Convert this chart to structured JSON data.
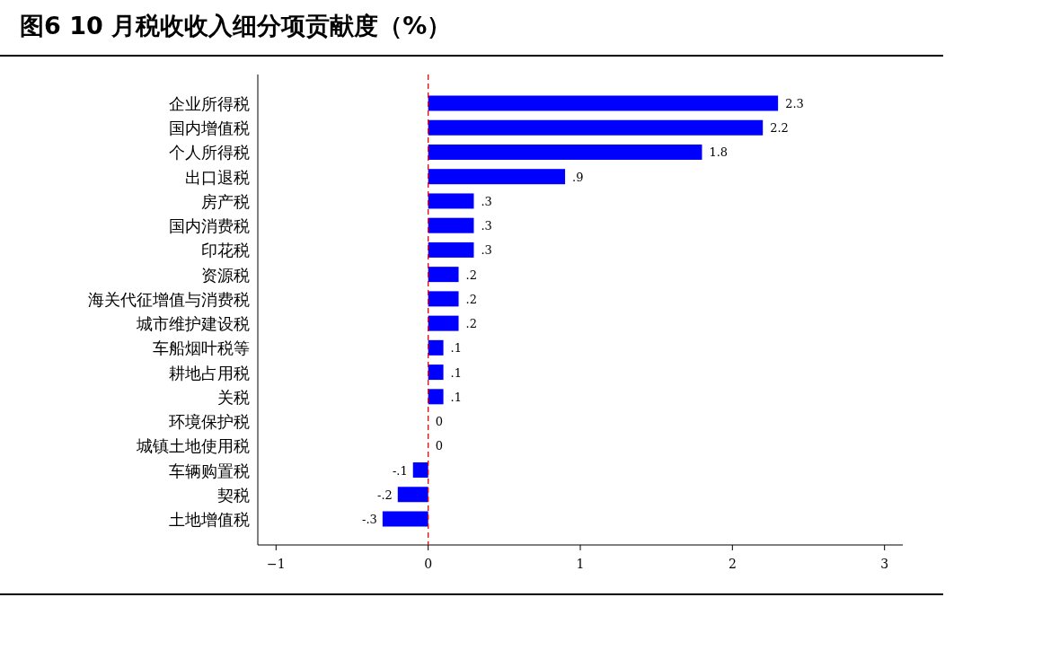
{
  "chart_data": {
    "type": "bar",
    "orientation": "horizontal",
    "title": "图6   10 月税收收入细分项贡献度（%）",
    "categories": [
      "企业所得税",
      "国内增值税",
      "个人所得税",
      "出口退税",
      "房产税",
      "国内消费税",
      "印花税",
      "资源税",
      "海关代征增值与消费税",
      "城市维护建设税",
      "车船烟叶税等",
      "耕地占用税",
      "关税",
      "环境保护税",
      "城镇土地使用税",
      "车辆购置税",
      "契税",
      "土地增值税"
    ],
    "values": [
      2.3,
      2.2,
      1.8,
      0.9,
      0.3,
      0.3,
      0.3,
      0.2,
      0.2,
      0.2,
      0.1,
      0.1,
      0.1,
      0,
      0,
      -0.1,
      -0.2,
      -0.3
    ],
    "value_labels": [
      "2.3",
      "2.2",
      "1.8",
      ".9",
      ".3",
      ".3",
      ".3",
      ".2",
      ".2",
      ".2",
      ".1",
      ".1",
      ".1",
      "0",
      "0",
      "-.1",
      "-.2",
      "-.3"
    ],
    "color": "#0000ff",
    "xlim": [
      -1.12,
      3.12
    ],
    "xticks": [
      -1,
      0,
      1,
      2,
      3
    ],
    "ref_lines": [
      {
        "axis": "x",
        "value": 0,
        "color": "#ff0000",
        "line_style": "dashed"
      }
    ]
  }
}
